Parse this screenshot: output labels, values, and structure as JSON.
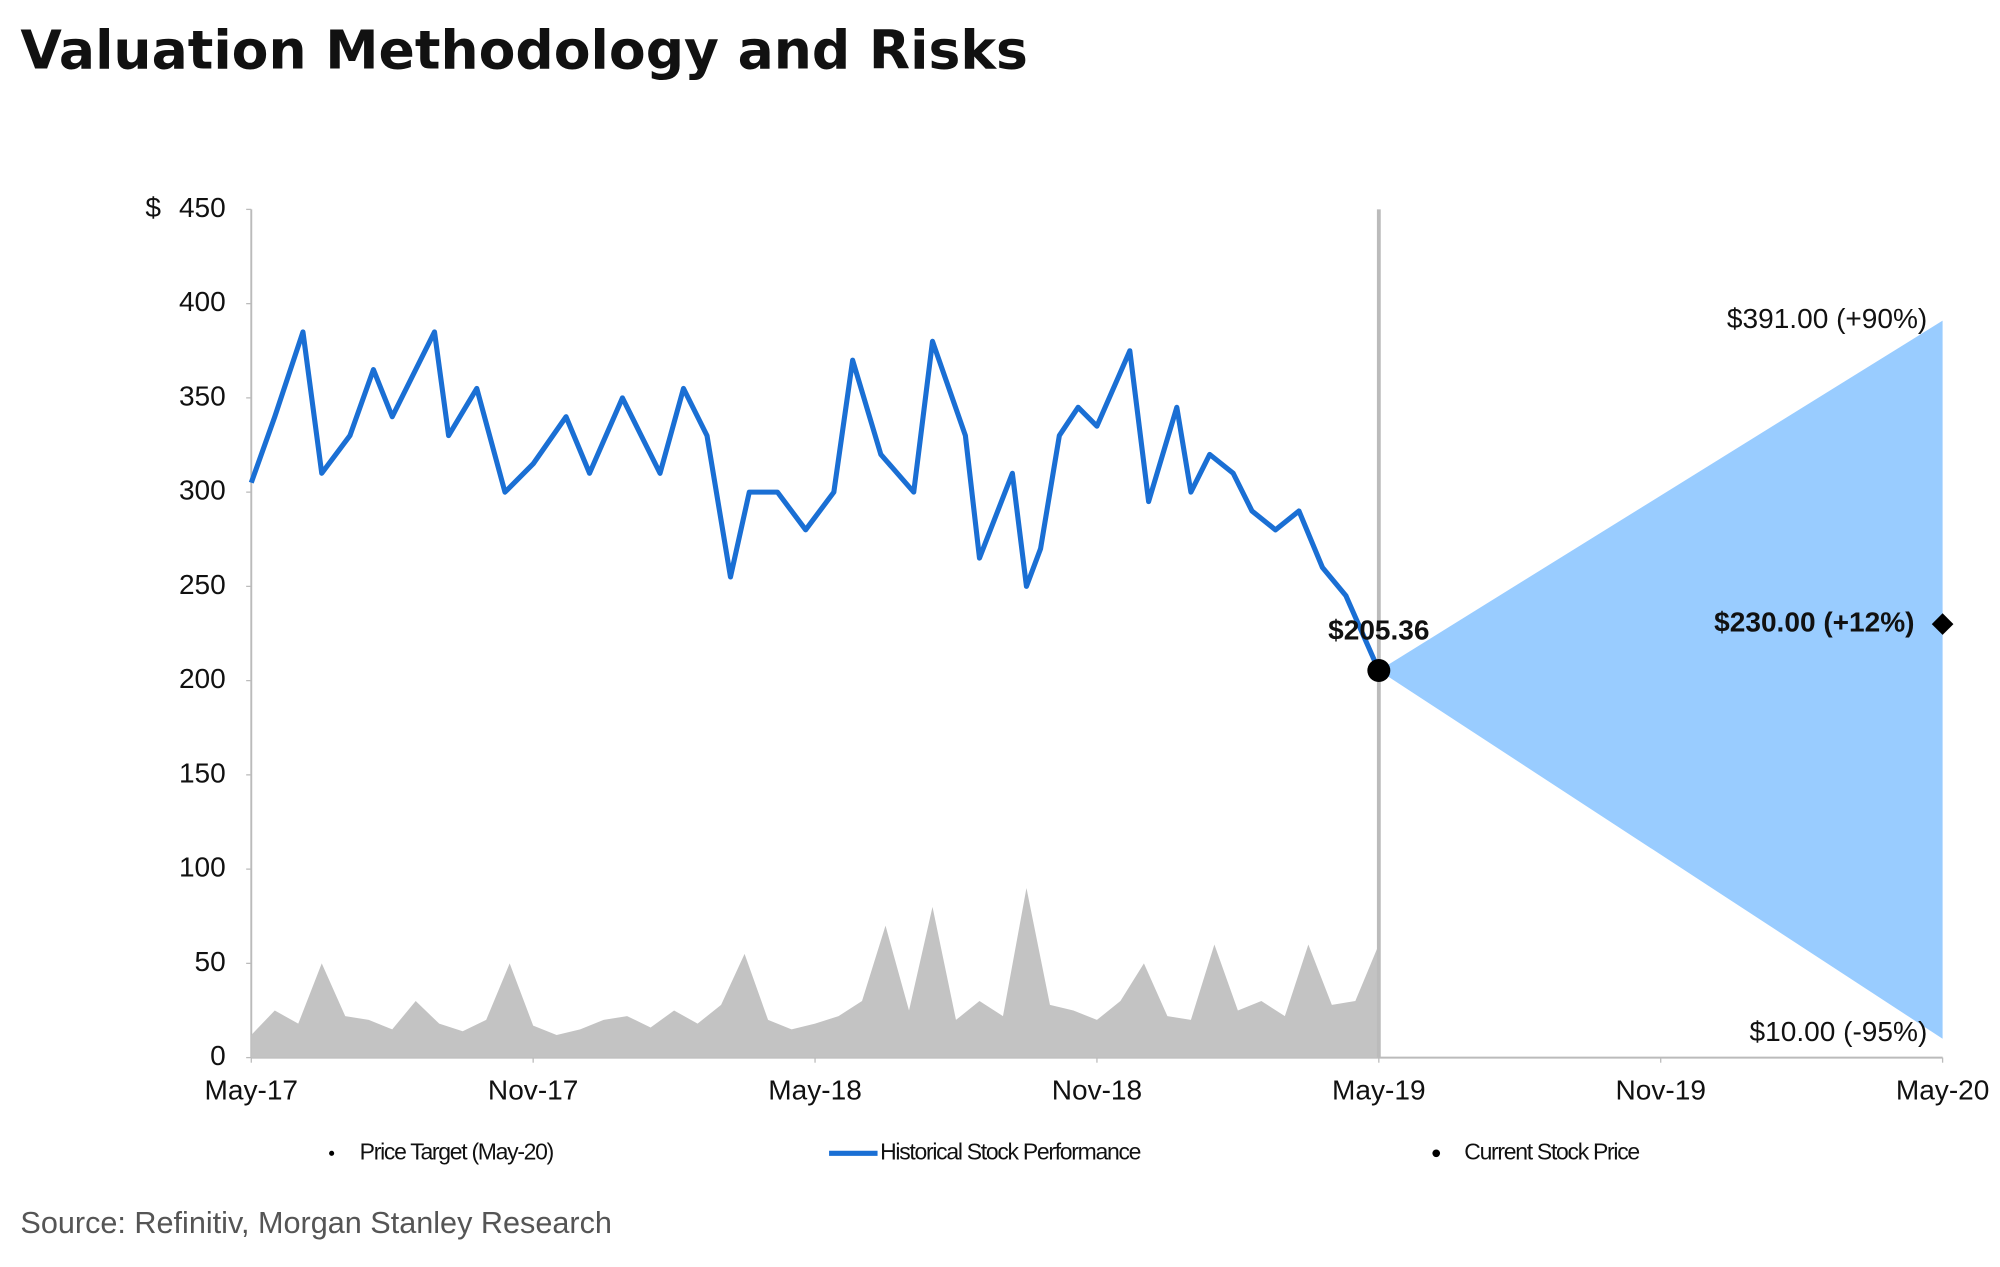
{
  "chart_data": {
    "type": "line",
    "title": "Valuation Methodology and Risks",
    "source": "Source: Refinitiv, Morgan Stanley Research",
    "y_unit": "$",
    "xlim": [
      0,
      36
    ],
    "xticks": [
      {
        "value": 0,
        "label": "May-17"
      },
      {
        "value": 6,
        "label": "Nov-17"
      },
      {
        "value": 12,
        "label": "May-18"
      },
      {
        "value": 18,
        "label": "Nov-18"
      },
      {
        "value": 24,
        "label": "May-19"
      },
      {
        "value": 30,
        "label": "Nov-19"
      },
      {
        "value": 36,
        "label": "May-20"
      }
    ],
    "ylim": [
      0,
      450
    ],
    "yticks": [
      0,
      50,
      100,
      150,
      200,
      250,
      300,
      350,
      400,
      450
    ],
    "series": [
      {
        "name": "Historical Stock Performance",
        "color": "#1a6fd4",
        "x": [
          0,
          0.5,
          1.1,
          1.5,
          2.1,
          2.6,
          3,
          3.9,
          4.2,
          4.8,
          5.4,
          6,
          6.7,
          7.2,
          7.9,
          8.3,
          8.7,
          9.2,
          9.7,
          10.2,
          10.6,
          11.2,
          11.8,
          12.4,
          12.8,
          13.4,
          14.1,
          14.5,
          15.2,
          15.5,
          16.2,
          16.5,
          16.8,
          17.2,
          17.6,
          18,
          18.7,
          19.1,
          19.7,
          20,
          20.4,
          20.9,
          21.3,
          21.8,
          22.3,
          22.8,
          23.3,
          24
        ],
        "values": [
          305,
          340,
          385,
          310,
          330,
          365,
          340,
          385,
          330,
          355,
          300,
          315,
          340,
          310,
          350,
          330,
          310,
          355,
          330,
          255,
          300,
          300,
          280,
          300,
          370,
          320,
          300,
          380,
          330,
          265,
          310,
          250,
          270,
          330,
          345,
          335,
          375,
          295,
          345,
          300,
          320,
          310,
          290,
          280,
          290,
          260,
          245,
          205.36
        ]
      }
    ],
    "volume": {
      "color": "#c3c3c3",
      "x": [
        0,
        0.5,
        1,
        1.5,
        2,
        2.5,
        3,
        3.5,
        4,
        4.5,
        5,
        5.5,
        6,
        6.5,
        7,
        7.5,
        8,
        8.5,
        9,
        9.5,
        10,
        10.5,
        11,
        11.5,
        12,
        12.5,
        13,
        13.5,
        14,
        14.5,
        15,
        15.5,
        16,
        16.5,
        17,
        17.5,
        18,
        18.5,
        19,
        19.5,
        20,
        20.5,
        21,
        21.5,
        22,
        22.5,
        23,
        23.5,
        24
      ],
      "values": [
        12,
        25,
        18,
        50,
        22,
        20,
        15,
        30,
        18,
        14,
        20,
        50,
        17,
        12,
        15,
        20,
        22,
        16,
        25,
        18,
        28,
        55,
        20,
        15,
        18,
        22,
        30,
        70,
        25,
        80,
        20,
        30,
        22,
        90,
        28,
        25,
        20,
        30,
        50,
        22,
        20,
        60,
        25,
        30,
        22,
        60,
        28,
        30,
        60
      ]
    },
    "current": {
      "name": "Current Stock Price",
      "x": 24,
      "value": 205.36,
      "value_label": "$205.36",
      "color": "#000000"
    },
    "target": {
      "name": "Price Target (May-20)",
      "x": 36,
      "value": 230,
      "value_label": "$230.00 (+12%)",
      "color": "#000000"
    },
    "bull": {
      "x": 36,
      "value": 391,
      "value_label": "$391.00 (+90%)"
    },
    "bear": {
      "x": 36,
      "value": 10,
      "value_label": "$10.00 (-95%)"
    },
    "fan_color": "#99ccff"
  }
}
